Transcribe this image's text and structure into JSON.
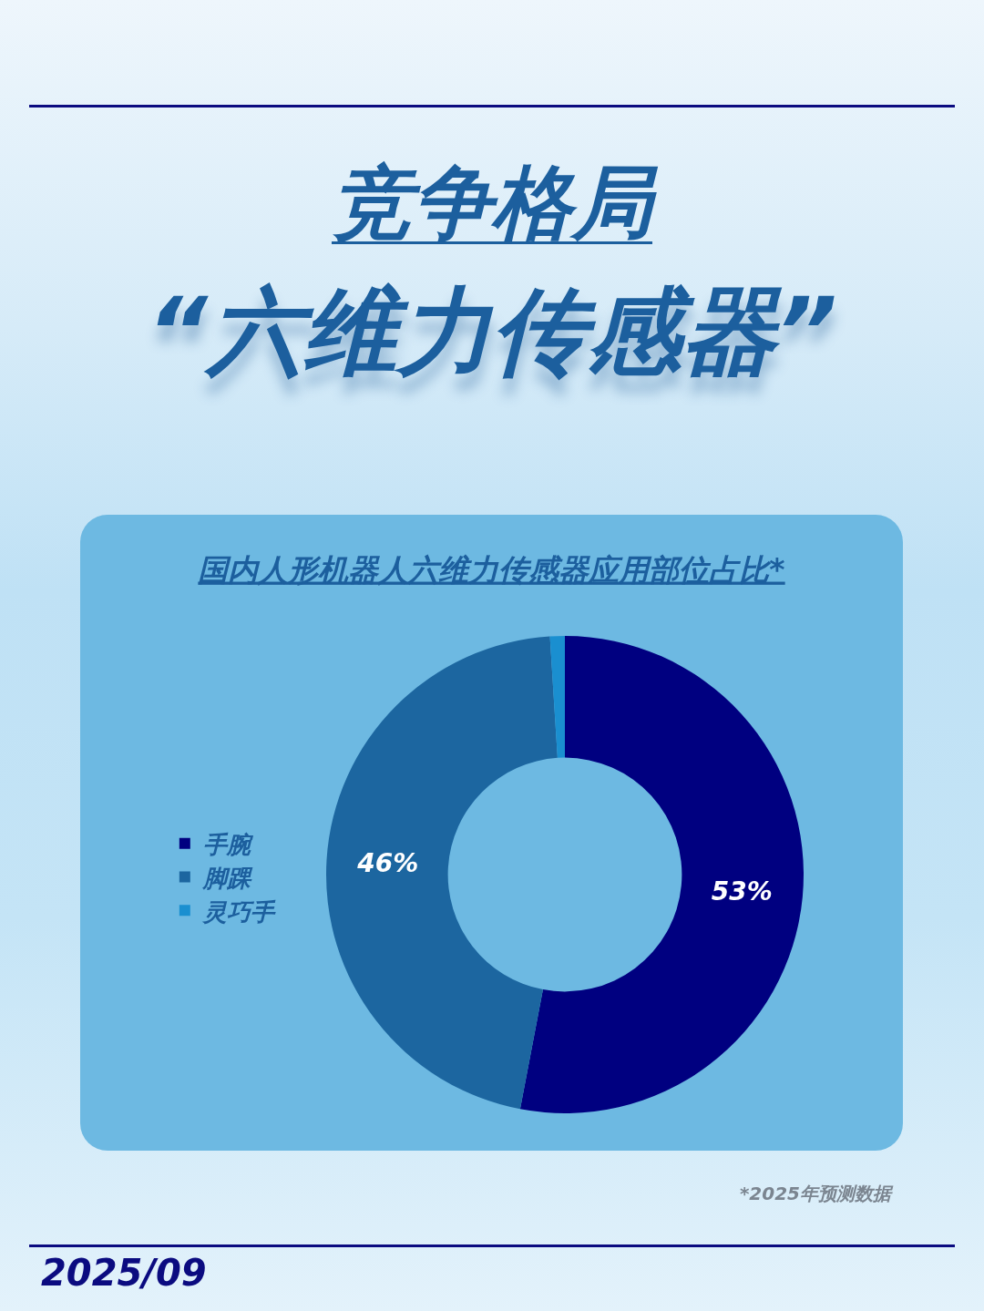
{
  "chart_data": {
    "type": "donut",
    "title": "国内人形机器人六维力传感器应用部位占比*",
    "categories": [
      "手腕",
      "脚踝",
      "灵巧手"
    ],
    "values": [
      53,
      46,
      1
    ],
    "colors": [
      "#000080",
      "#1c66a0",
      "#1a8fd0"
    ],
    "value_labels": [
      "53%",
      "46%",
      null
    ],
    "legend": "left",
    "annotations": [
      "竞争格局",
      "“六维力传感器”",
      "*2025年预测数据",
      "2025/09"
    ]
  }
}
